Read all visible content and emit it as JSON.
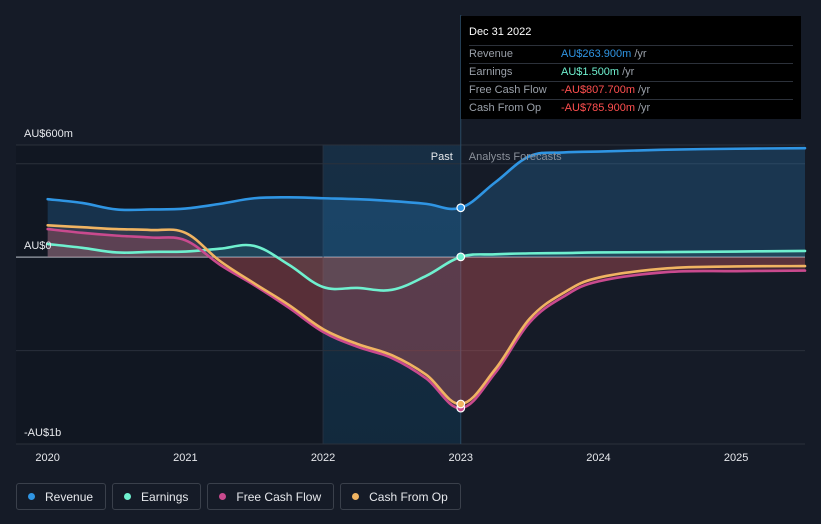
{
  "tooltip": {
    "date": "Dec 31 2022",
    "rows": [
      {
        "name": "Revenue",
        "value": "AU$263.900m",
        "unit": "/yr",
        "color": "#2f95e3"
      },
      {
        "name": "Earnings",
        "value": "AU$1.500m",
        "unit": "/yr",
        "color": "#6ff0cf"
      },
      {
        "name": "Free Cash Flow",
        "value": "-AU$807.700m",
        "unit": "/yr",
        "color": "#ff4f4f"
      },
      {
        "name": "Cash From Op",
        "value": "-AU$785.900m",
        "unit": "/yr",
        "color": "#ff4f4f"
      }
    ]
  },
  "legend": [
    {
      "label": "Revenue",
      "color": "#2f95e3"
    },
    {
      "label": "Earnings",
      "color": "#6ff0cf"
    },
    {
      "label": "Free Cash Flow",
      "color": "#c94a8e"
    },
    {
      "label": "Cash From Op",
      "color": "#f0b462"
    }
  ],
  "chart_data": {
    "type": "line",
    "title": "",
    "xlabel": "",
    "ylabel": "",
    "y_tick_labels": [
      {
        "value": 600,
        "label": "AU$600m"
      },
      {
        "value": 0,
        "label": "AU$0"
      },
      {
        "value": -1000,
        "label": "-AU$1b"
      }
    ],
    "x_ticks": [
      {
        "value": 2020,
        "label": "2020"
      },
      {
        "value": 2021,
        "label": "2021"
      },
      {
        "value": 2022,
        "label": "2022"
      },
      {
        "value": 2023,
        "label": "2023"
      },
      {
        "value": 2024,
        "label": "2024"
      },
      {
        "value": 2025,
        "label": "2025"
      }
    ],
    "xlim": [
      2019.77,
      2025.5
    ],
    "ylim": [
      -1000,
      600
    ],
    "gridlines": [
      600,
      500,
      0,
      -500,
      -1000
    ],
    "past_label": "Past",
    "forecast_label": "Analysts Forecasts",
    "divider_x": 2023,
    "highlight_start": 2022,
    "series": [
      {
        "name": "Revenue",
        "color": "#2f95e3",
        "points": [
          [
            2020,
            310
          ],
          [
            2020.25,
            290
          ],
          [
            2020.5,
            255
          ],
          [
            2020.75,
            255
          ],
          [
            2021,
            260
          ],
          [
            2021.25,
            285
          ],
          [
            2021.5,
            315
          ],
          [
            2021.75,
            320
          ],
          [
            2022,
            315
          ],
          [
            2022.25,
            310
          ],
          [
            2022.5,
            300
          ],
          [
            2022.75,
            285
          ],
          [
            2023,
            264
          ],
          [
            2023.25,
            400
          ],
          [
            2023.5,
            540
          ],
          [
            2023.75,
            560
          ],
          [
            2024,
            565
          ],
          [
            2024.5,
            575
          ],
          [
            2025,
            580
          ],
          [
            2025.5,
            583
          ]
        ]
      },
      {
        "name": "Earnings",
        "color": "#6ff0cf",
        "points": [
          [
            2020,
            70
          ],
          [
            2020.25,
            50
          ],
          [
            2020.5,
            25
          ],
          [
            2020.75,
            28
          ],
          [
            2021,
            30
          ],
          [
            2021.25,
            45
          ],
          [
            2021.5,
            60
          ],
          [
            2021.75,
            -40
          ],
          [
            2022,
            -160
          ],
          [
            2022.25,
            -165
          ],
          [
            2022.5,
            -175
          ],
          [
            2022.75,
            -100
          ],
          [
            2023,
            1.5
          ],
          [
            2023.25,
            15
          ],
          [
            2023.5,
            20
          ],
          [
            2023.75,
            22
          ],
          [
            2024,
            25
          ],
          [
            2024.5,
            27
          ],
          [
            2025,
            30
          ],
          [
            2025.5,
            33
          ]
        ]
      },
      {
        "name": "Free Cash Flow",
        "color": "#c94a8e",
        "points": [
          [
            2020,
            150
          ],
          [
            2020.25,
            130
          ],
          [
            2020.5,
            115
          ],
          [
            2020.75,
            105
          ],
          [
            2021,
            90
          ],
          [
            2021.25,
            -40
          ],
          [
            2021.5,
            -150
          ],
          [
            2021.75,
            -270
          ],
          [
            2022,
            -400
          ],
          [
            2022.25,
            -480
          ],
          [
            2022.5,
            -540
          ],
          [
            2022.75,
            -650
          ],
          [
            2023,
            -808
          ],
          [
            2023.25,
            -620
          ],
          [
            2023.5,
            -350
          ],
          [
            2023.75,
            -210
          ],
          [
            2024,
            -130
          ],
          [
            2024.5,
            -80
          ],
          [
            2025,
            -75
          ],
          [
            2025.5,
            -72
          ]
        ]
      },
      {
        "name": "Cash From Op",
        "color": "#f0b462",
        "points": [
          [
            2020,
            170
          ],
          [
            2020.25,
            160
          ],
          [
            2020.5,
            150
          ],
          [
            2020.75,
            145
          ],
          [
            2021,
            130
          ],
          [
            2021.25,
            -20
          ],
          [
            2021.5,
            -140
          ],
          [
            2021.75,
            -255
          ],
          [
            2022,
            -385
          ],
          [
            2022.25,
            -465
          ],
          [
            2022.5,
            -525
          ],
          [
            2022.75,
            -630
          ],
          [
            2023,
            -786
          ],
          [
            2023.25,
            -600
          ],
          [
            2023.5,
            -330
          ],
          [
            2023.75,
            -190
          ],
          [
            2024,
            -110
          ],
          [
            2024.5,
            -60
          ],
          [
            2025,
            -50
          ],
          [
            2025.5,
            -48
          ]
        ]
      }
    ]
  }
}
